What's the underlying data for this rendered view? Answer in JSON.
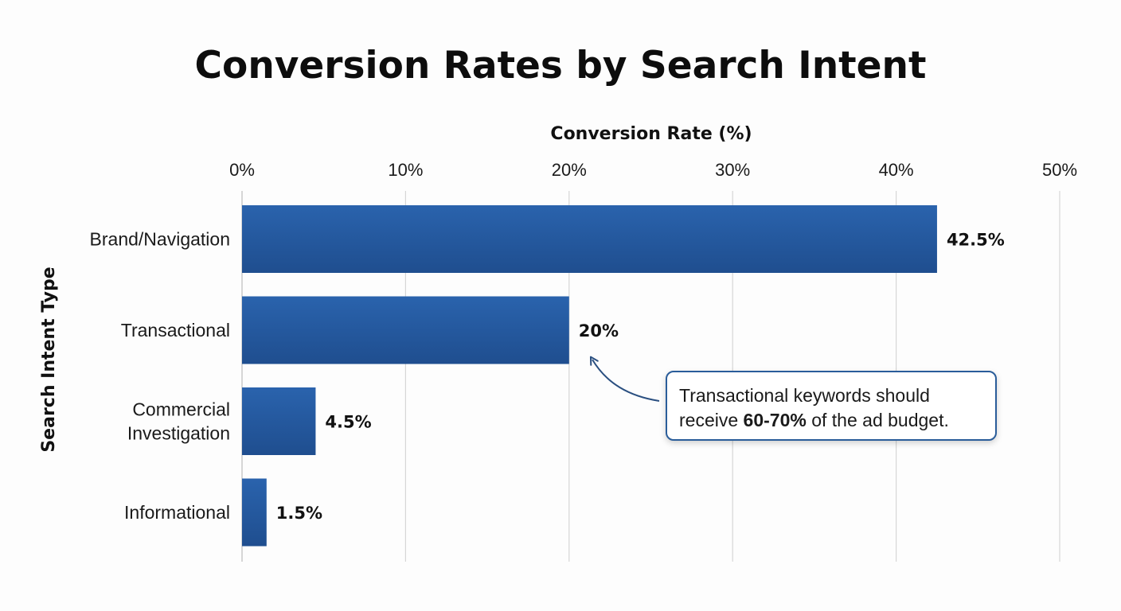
{
  "chart_data": {
    "type": "bar",
    "orientation": "horizontal",
    "title": "Conversion Rates by Search Intent",
    "xlabel": "Conversion Rate (%)",
    "ylabel": "Search Intent Type",
    "xlim": [
      0,
      50
    ],
    "x_ticks": [
      "0%",
      "10%",
      "20%",
      "30%",
      "40%",
      "50%"
    ],
    "tick_values": [
      0,
      10,
      20,
      30,
      40,
      50
    ],
    "grid": "vertical",
    "bar_color": "#1f4e8f",
    "bar_color_light": "#2a63ad",
    "categories": [
      [
        "Brand/Navigation"
      ],
      [
        "Transactional"
      ],
      [
        "Commercial",
        "Investigation"
      ],
      [
        "Informational"
      ]
    ],
    "values": [
      42.5,
      20,
      4.5,
      1.5
    ],
    "data_labels": [
      "42.5%",
      "20%",
      "4.5%",
      "1.5%"
    ],
    "annotation": {
      "line1": "Transactional keywords should",
      "line2_before": "receive ",
      "line2_bold": "60-70%",
      "line2_after": " of the ad budget.",
      "points_to": "Transactional"
    }
  }
}
